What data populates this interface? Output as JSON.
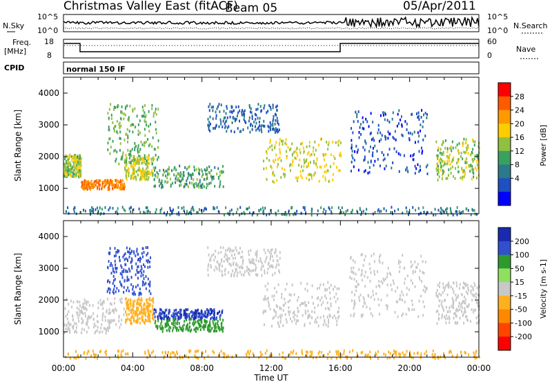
{
  "header": {
    "station": "Christmas Valley East (fitACF)",
    "beam": "Beam 05",
    "date": "05/Apr/2011"
  },
  "sky_panel": {
    "left_label": "N.Sky",
    "left_ticks": [
      "10^5",
      "10^0"
    ],
    "right_ticks": [
      "10^5",
      "10^0"
    ],
    "right_label": "N.Search"
  },
  "freq_panel": {
    "label_line1": "Freq.",
    "label_line2": "[MHz]",
    "left_ticks": [
      "18",
      "8"
    ],
    "right_ticks": [
      "60",
      "0"
    ],
    "right_label": "Nave"
  },
  "cpid_panel": {
    "label": "CPID",
    "mode": "normal 150 IF"
  },
  "x_axis": {
    "label": "Time UT",
    "ticks": [
      "00:00",
      "04:00",
      "08:00",
      "12:00",
      "16:00",
      "20:00",
      "00:00"
    ]
  },
  "chart_data": [
    {
      "type": "heatmap",
      "title": "",
      "xlabel": "Time UT",
      "ylabel": "Slant Range [km]",
      "x_range_hours": [
        0,
        24
      ],
      "y_range_km": [
        200,
        4500
      ],
      "y_ticks": [
        1000,
        2000,
        3000,
        4000
      ],
      "colorbar": {
        "label": "Power [dB]",
        "ticks": [
          "28",
          "24",
          "20",
          "16",
          "12",
          "8",
          "4"
        ],
        "colors": [
          "#ff0000",
          "#ff5a00",
          "#ff9900",
          "#ffcc00",
          "#90c040",
          "#3aa060",
          "#2b7a8c",
          "#1e50c0",
          "#0000ff"
        ]
      },
      "scatter_regions": [
        {
          "name": "early-band",
          "t0": 0.0,
          "t1": 1.0,
          "r0": 1400,
          "r1": 2100,
          "value": 16
        },
        {
          "name": "early-strong",
          "t0": 1.0,
          "t1": 3.5,
          "r0": 1000,
          "r1": 1300,
          "value": 26
        },
        {
          "name": "early-rise",
          "t0": 3.5,
          "t1": 5.2,
          "r0": 1300,
          "r1": 2100,
          "value": 18
        },
        {
          "name": "morning-plume",
          "t0": 2.5,
          "t1": 5.5,
          "r0": 1800,
          "r1": 3700,
          "value": 14
        },
        {
          "name": "block",
          "t0": 5.2,
          "t1": 9.2,
          "r0": 1050,
          "r1": 1750,
          "value": 12
        },
        {
          "name": "noon-arc",
          "t0": 8.3,
          "t1": 12.5,
          "r0": 2800,
          "r1": 3700,
          "value": 6
        },
        {
          "name": "afternoon-slope",
          "t0": 11.5,
          "t1": 16.0,
          "r0": 1200,
          "r1": 2600,
          "value": 18
        },
        {
          "name": "evening",
          "t0": 16.5,
          "t1": 21.0,
          "r0": 1500,
          "r1": 3500,
          "value": 4
        },
        {
          "name": "late-slope",
          "t0": 21.5,
          "t1": 24.0,
          "r0": 1300,
          "r1": 2600,
          "value": 16
        },
        {
          "name": "ground-band",
          "t0": 0.0,
          "t1": 24.0,
          "r0": 200,
          "r1": 450,
          "value": 8
        }
      ]
    },
    {
      "type": "heatmap",
      "title": "",
      "xlabel": "Time UT",
      "ylabel": "Slant Range [km]",
      "x_range_hours": [
        0,
        24
      ],
      "y_range_km": [
        200,
        4500
      ],
      "y_ticks": [
        1000,
        2000,
        3000,
        4000
      ],
      "colorbar": {
        "label": "Velocity [m s-1]",
        "ticks": [
          "200",
          "100",
          "50",
          "15",
          "-15",
          "-50",
          "-100",
          "-200"
        ],
        "colors": [
          "#1a2ab0",
          "#3050d0",
          "#2e9a2e",
          "#8fe060",
          "#c8c8c8",
          "#ffb020",
          "#ff8800",
          "#ff4400",
          "#ff0000"
        ]
      },
      "scatter_regions": [
        {
          "name": "early-grey",
          "t0": 0.0,
          "t1": 3.5,
          "r0": 1000,
          "r1": 2100,
          "value": 0
        },
        {
          "name": "early-rise-grey",
          "t0": 3.5,
          "t1": 5.2,
          "r0": 1300,
          "r1": 2100,
          "value": -30
        },
        {
          "name": "morning-blue",
          "t0": 2.5,
          "t1": 5.0,
          "r0": 2200,
          "r1": 3700,
          "value": 180
        },
        {
          "name": "block-green",
          "t0": 5.2,
          "t1": 9.2,
          "r0": 1050,
          "r1": 1450,
          "value": 60
        },
        {
          "name": "block-blue",
          "t0": 5.2,
          "t1": 9.2,
          "r0": 1450,
          "r1": 1750,
          "value": 200
        },
        {
          "name": "noon-arc-grey",
          "t0": 8.3,
          "t1": 12.5,
          "r0": 2800,
          "r1": 3700,
          "value": 0
        },
        {
          "name": "afternoon-grey",
          "t0": 11.5,
          "t1": 16.0,
          "r0": 1200,
          "r1": 2600,
          "value": 0
        },
        {
          "name": "evening-grey",
          "t0": 16.5,
          "t1": 21.0,
          "r0": 1500,
          "r1": 3500,
          "value": 0
        },
        {
          "name": "late-grey",
          "t0": 21.5,
          "t1": 24.0,
          "r0": 1300,
          "r1": 2600,
          "value": 0
        },
        {
          "name": "ground-orange",
          "t0": 0.0,
          "t1": 24.0,
          "r0": 200,
          "r1": 450,
          "value": -40
        }
      ]
    }
  ]
}
